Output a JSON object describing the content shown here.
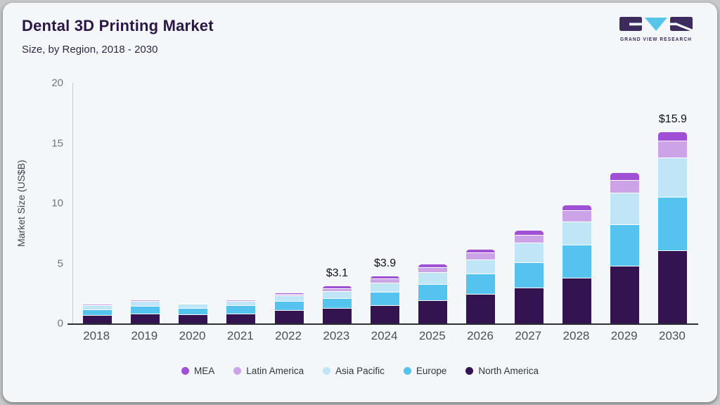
{
  "header": {
    "title": "Dental 3D Printing Market",
    "subtitle": "Size, by Region, 2018 - 2030",
    "logo_text": "GRAND VIEW RESEARCH"
  },
  "chart_data": {
    "type": "bar",
    "stacked": true,
    "title": "Dental 3D Printing Market Size, by Region, 2018 - 2030",
    "xlabel": "",
    "ylabel": "Market Size (US$B)",
    "ylim": [
      0,
      20
    ],
    "yticks": [
      0,
      5,
      10,
      15,
      20
    ],
    "grid": false,
    "legend_position": "bottom",
    "categories": [
      "2018",
      "2019",
      "2020",
      "2021",
      "2022",
      "2023",
      "2024",
      "2025",
      "2026",
      "2027",
      "2028",
      "2029",
      "2030"
    ],
    "series": [
      {
        "name": "North America",
        "color": "#331450",
        "values": [
          0.63,
          0.78,
          0.68,
          0.74,
          1.05,
          1.2,
          1.45,
          1.85,
          2.4,
          2.95,
          3.75,
          4.75,
          6.05
        ]
      },
      {
        "name": "Europe",
        "color": "#54c4ee",
        "values": [
          0.5,
          0.65,
          0.55,
          0.7,
          0.78,
          0.85,
          1.15,
          1.35,
          1.7,
          2.1,
          2.75,
          3.45,
          4.4
        ]
      },
      {
        "name": "Asia Pacific",
        "color": "#c0e5f7",
        "values": [
          0.33,
          0.39,
          0.33,
          0.35,
          0.43,
          0.57,
          0.74,
          1.0,
          1.18,
          1.6,
          1.95,
          2.6,
          3.27
        ]
      },
      {
        "name": "Latin America",
        "color": "#cda3e8",
        "values": [
          0.1,
          0.14,
          0.1,
          0.12,
          0.15,
          0.25,
          0.33,
          0.45,
          0.55,
          0.65,
          0.88,
          1.05,
          1.4
        ]
      },
      {
        "name": "MEA",
        "color": "#a050d4",
        "values": [
          0.05,
          0.05,
          0.05,
          0.08,
          0.11,
          0.23,
          0.23,
          0.28,
          0.33,
          0.4,
          0.49,
          0.65,
          0.78
        ]
      }
    ],
    "annotations": {
      "2023": "$3.1",
      "2024": "$3.9",
      "2030": "$15.9"
    }
  },
  "legend": {
    "items": [
      {
        "label": "MEA",
        "color": "#a050d4"
      },
      {
        "label": "Latin America",
        "color": "#cda3e8"
      },
      {
        "label": "Asia Pacific",
        "color": "#c0e5f7"
      },
      {
        "label": "Europe",
        "color": "#54c4ee"
      },
      {
        "label": "North America",
        "color": "#331450"
      }
    ]
  },
  "logo_colors": {
    "blocks": "#3d2b5e",
    "triangle": "#56c5ea"
  }
}
